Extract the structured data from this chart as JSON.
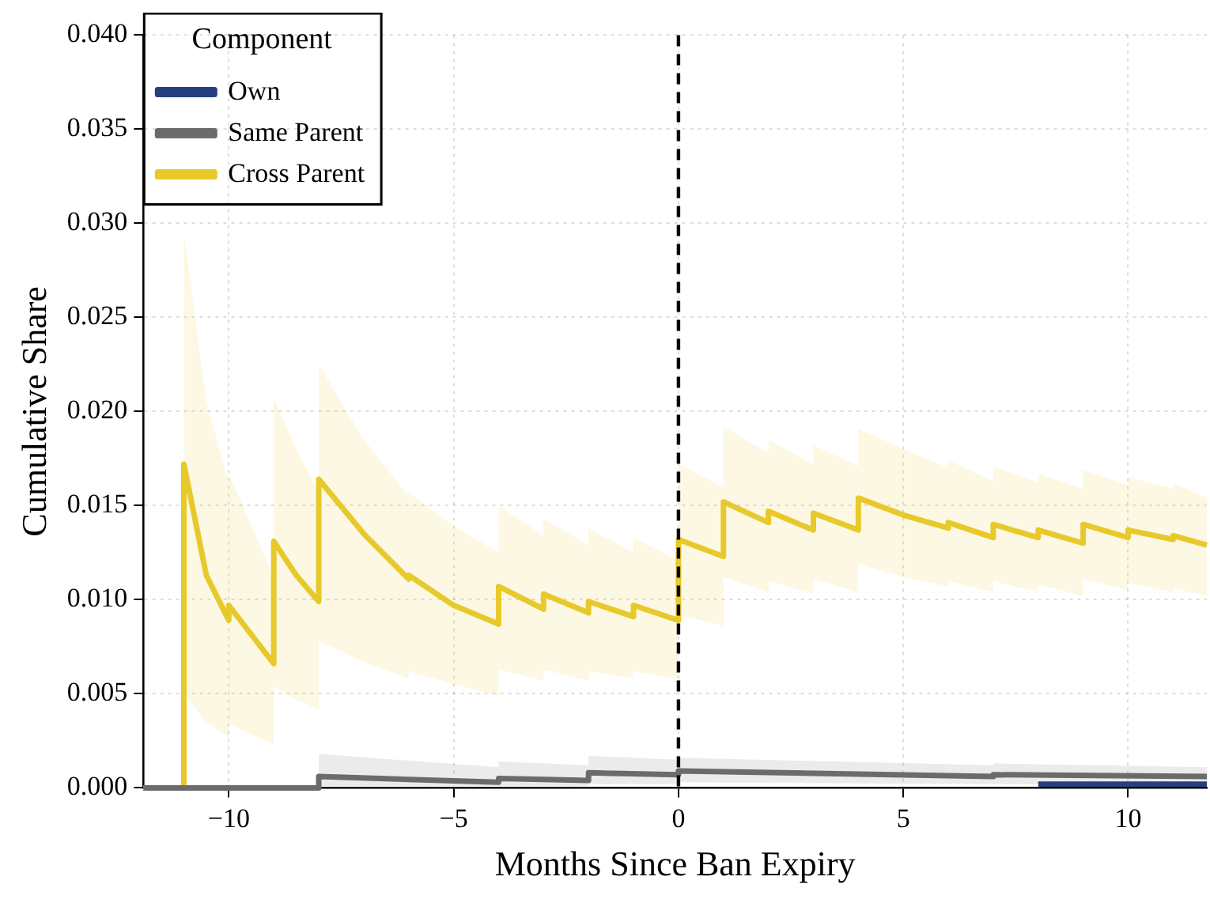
{
  "chart_data": {
    "type": "line",
    "xlabel": "Months Since Ban Expiry",
    "ylabel": "Cumulative Share",
    "legend_title": "Component",
    "xlim": [
      -11.9,
      11.75
    ],
    "xticks": [
      {
        "value": -10,
        "label": "−10"
      },
      {
        "value": -5,
        "label": "−5"
      },
      0,
      5,
      10
    ],
    "ylim": [
      0,
      0.04
    ],
    "yticks": [
      {
        "value": 0,
        "label": "0.000"
      },
      {
        "value": 0.005,
        "label": "0.005"
      },
      {
        "value": 0.01,
        "label": "0.010"
      },
      {
        "value": 0.015,
        "label": "0.015"
      },
      {
        "value": 0.02,
        "label": "0.020"
      },
      {
        "value": 0.025,
        "label": "0.025"
      },
      {
        "value": 0.03,
        "label": "0.030"
      },
      {
        "value": 0.035,
        "label": "0.035"
      },
      {
        "value": 0.04,
        "label": "0.040"
      }
    ],
    "grid": true,
    "legend": "top left",
    "ref_lines": [
      {
        "axis": "x",
        "value": 0,
        "color": "#000000",
        "line_style": "dashed"
      }
    ],
    "series": [
      {
        "name": "Own",
        "color": "#263f7f",
        "x": [
          8,
          11.75
        ],
        "values": [
          0.0002,
          0.0002
        ]
      },
      {
        "name": "Same Parent",
        "color": "#6b6b6b",
        "x": [
          -11.9,
          -8,
          -8,
          -4,
          -4,
          -2,
          -2,
          0,
          0,
          7,
          7,
          11.75
        ],
        "values": [
          0,
          0,
          0.0006,
          0.0003,
          0.0005,
          0.0004,
          0.0008,
          0.0007,
          0.0009,
          0.0006,
          0.0007,
          0.0006
        ],
        "lower": [
          0,
          0,
          0.0001,
          0.0001,
          0.0001,
          0.0001,
          0.0002,
          0.0002,
          0.0003,
          0.0002,
          0.0002,
          0.0002
        ],
        "upper": [
          0,
          0,
          0.0018,
          0.0011,
          0.0014,
          0.0012,
          0.0017,
          0.0015,
          0.0016,
          0.0012,
          0.0013,
          0.0011
        ]
      },
      {
        "name": "Cross Parent",
        "color": "#e8c92c",
        "x": [
          -11.9,
          -11,
          -11,
          -10.5,
          -10,
          -10,
          -9,
          -9,
          -8.5,
          -8,
          -8,
          -7,
          -6,
          -6,
          -5,
          -4,
          -4,
          -3,
          -3,
          -2,
          -2,
          -1,
          -1,
          0,
          0,
          1,
          1,
          2,
          2,
          3,
          3,
          4,
          4,
          5,
          6,
          6,
          7,
          7,
          8,
          8,
          9,
          9,
          10,
          10,
          11,
          11,
          11.75
        ],
        "values": [
          0,
          0,
          0.0172,
          0.0113,
          0.0089,
          0.0097,
          0.0066,
          0.0131,
          0.0113,
          0.0099,
          0.0164,
          0.0135,
          0.0111,
          0.0113,
          0.0097,
          0.0087,
          0.0107,
          0.0095,
          0.0103,
          0.0093,
          0.0099,
          0.0091,
          0.0097,
          0.0089,
          0.0132,
          0.0123,
          0.0152,
          0.0141,
          0.0147,
          0.0137,
          0.0146,
          0.0137,
          0.0154,
          0.0145,
          0.0138,
          0.0141,
          0.0133,
          0.014,
          0.0133,
          0.0137,
          0.013,
          0.014,
          0.0133,
          0.0137,
          0.0132,
          0.0134,
          0.0129
        ],
        "lower": [
          0,
          0,
          0.005,
          0.0035,
          0.0027,
          0.0034,
          0.0023,
          0.0054,
          0.0047,
          0.0042,
          0.0078,
          0.0067,
          0.0058,
          0.0062,
          0.0055,
          0.0049,
          0.0063,
          0.0057,
          0.0063,
          0.0057,
          0.0062,
          0.0058,
          0.0062,
          0.0058,
          0.0092,
          0.0086,
          0.0112,
          0.0104,
          0.011,
          0.0103,
          0.0111,
          0.0104,
          0.0119,
          0.0112,
          0.0107,
          0.011,
          0.0104,
          0.011,
          0.0104,
          0.0108,
          0.0102,
          0.0111,
          0.0105,
          0.0109,
          0.0104,
          0.0106,
          0.0102
        ],
        "upper": [
          0,
          0,
          0.0295,
          0.0205,
          0.0162,
          0.0167,
          0.0112,
          0.0207,
          0.018,
          0.0157,
          0.0225,
          0.0185,
          0.0155,
          0.0157,
          0.0139,
          0.0125,
          0.015,
          0.0134,
          0.0143,
          0.0129,
          0.0138,
          0.0125,
          0.0133,
          0.0121,
          0.0172,
          0.016,
          0.0192,
          0.0178,
          0.0185,
          0.0172,
          0.0182,
          0.0171,
          0.0191,
          0.018,
          0.017,
          0.0174,
          0.0163,
          0.0171,
          0.0162,
          0.0167,
          0.0159,
          0.0169,
          0.0161,
          0.0165,
          0.0159,
          0.0162,
          0.0154
        ]
      }
    ]
  }
}
